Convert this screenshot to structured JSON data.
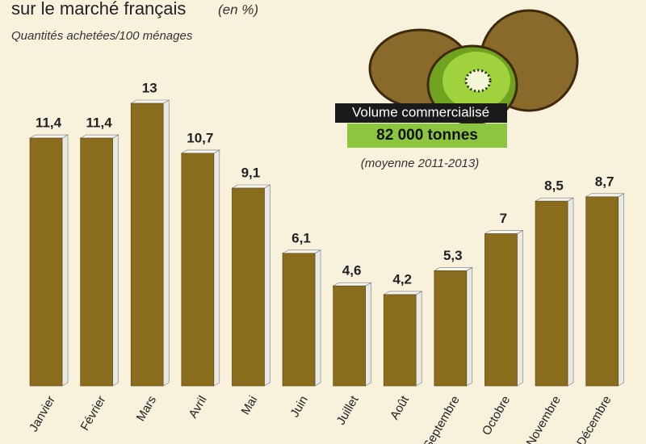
{
  "chart_data": {
    "type": "bar",
    "title": "sur le marché français",
    "unit": "(en %)",
    "subtitle": "Quantités achetées/100 ménages",
    "categories": [
      "Janvier",
      "Février",
      "Mars",
      "Avril",
      "Mai",
      "Juin",
      "Juillet",
      "Août",
      "Septembre",
      "Octobre",
      "Novembre",
      "Décembre"
    ],
    "values": [
      11.4,
      11.4,
      13,
      10.7,
      9.1,
      6.1,
      4.6,
      4.2,
      5.3,
      7,
      8.5,
      8.7
    ],
    "value_labels": [
      "11,4",
      "11,4",
      "13",
      "10,7",
      "9,1",
      "6,1",
      "4,6",
      "4,2",
      "5,3",
      "7",
      "8,5",
      "8,7"
    ],
    "color": "#8a6d1c",
    "annotations": [
      "Volume commercialisé",
      "82 000 tonnes",
      "(moyenne 2011-2013)"
    ]
  }
}
